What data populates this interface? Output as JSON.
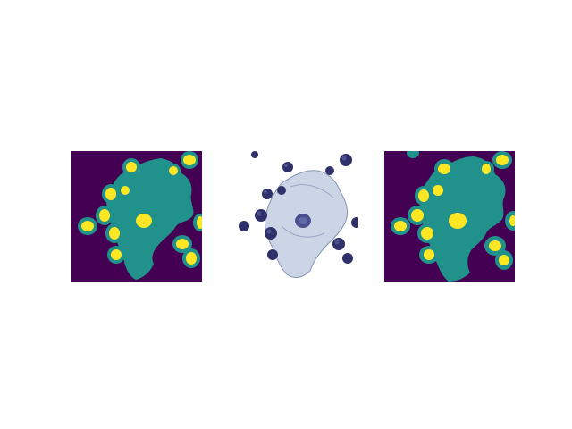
{
  "figure": {
    "panels": [
      {
        "id": "mask-left",
        "kind": "segmentation-mask",
        "description_hidden": true
      },
      {
        "id": "micrograph",
        "kind": "microscopy-image",
        "description_hidden": true
      },
      {
        "id": "mask-right",
        "kind": "segmentation-mask",
        "description_hidden": true
      }
    ],
    "colors": {
      "mask_background": "#440154",
      "mask_cytoplasm": "#21918c",
      "mask_nucleus": "#fde725",
      "micro_background": "#ffffff",
      "micro_cytoplasm": "#c9d3e4",
      "micro_outline": "#7f8fb0",
      "micro_nucleus_dark": "#2f2f6a",
      "micro_nucleus_mid": "#4b4f8f",
      "micro_nucleus_center": "#5e6aa6"
    }
  }
}
